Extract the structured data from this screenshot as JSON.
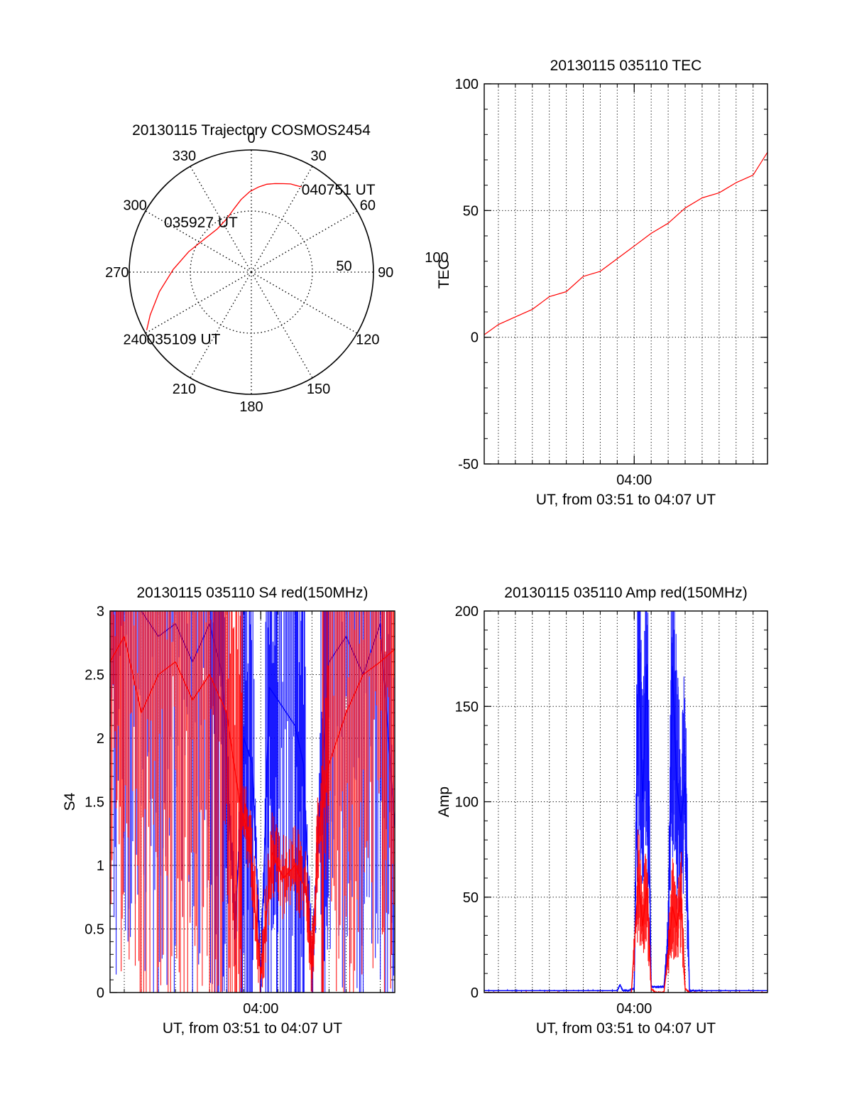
{
  "colors": {
    "red": "#ff0000",
    "blue": "#0000ff",
    "axis": "#000000",
    "grid": "#000000"
  },
  "chart_data": [
    {
      "id": "trajectory",
      "type": "polar",
      "title": "20130115 Trajectory COSMOS2454",
      "azimuth_labels": [
        "0",
        "30",
        "60",
        "90",
        "120",
        "150",
        "180",
        "210",
        "240",
        "270",
        "300",
        "330"
      ],
      "azimuth_values": [
        0,
        30,
        60,
        90,
        120,
        150,
        180,
        210,
        240,
        270,
        300,
        330
      ],
      "radial_labels": [
        "50",
        "100"
      ],
      "radial_values": [
        50,
        100
      ],
      "rlim": [
        0,
        100
      ],
      "track": {
        "color": "#ff0000",
        "points": [
          [
            241,
            98
          ],
          [
            247,
            90
          ],
          [
            258,
            77
          ],
          [
            272,
            64
          ],
          [
            288,
            54
          ],
          [
            305,
            47
          ],
          [
            322,
            45
          ],
          [
            335,
            48
          ],
          [
            345,
            54
          ],
          [
            352,
            60
          ],
          [
            359,
            66
          ],
          [
            5,
            70
          ],
          [
            10,
            73
          ],
          [
            15,
            75
          ],
          [
            20,
            77
          ],
          [
            24,
            79
          ],
          [
            28,
            80
          ],
          [
            30.5,
            81
          ]
        ]
      },
      "annotations": [
        {
          "text": "035109 UT",
          "az": 241,
          "r": 98
        },
        {
          "text": "035927 UT",
          "az": 308,
          "r": 48
        },
        {
          "text": "040751 UT",
          "az": 30.5,
          "r": 81
        }
      ]
    },
    {
      "id": "tec",
      "type": "line",
      "title": "20130115 035110 TEC",
      "ylabel": "TEC",
      "xlabel": "UT, from 03:51 to 04:07 UT",
      "xlim": [
        "03:51:10",
        "04:07:51"
      ],
      "ylim": [
        -50,
        100
      ],
      "yticks": [
        -50,
        0,
        50,
        100
      ],
      "ytick_labels": [
        "-50",
        "0",
        "50",
        "100"
      ],
      "xticks": [
        "04:00"
      ],
      "xtick_labels": [
        "04:00"
      ],
      "grid": true,
      "series": [
        {
          "color": "#ff0000",
          "x": [
            "03:51:10",
            "03:52:00",
            "03:53:00",
            "03:54:00",
            "03:55:00",
            "03:56:00",
            "03:57:00",
            "03:58:00",
            "03:59:00",
            "04:00:00",
            "04:01:00",
            "04:02:00",
            "04:03:00",
            "04:04:00",
            "04:05:00",
            "04:06:00",
            "04:07:00",
            "04:07:51"
          ],
          "y": [
            1,
            5,
            8,
            11,
            16,
            18,
            24,
            26,
            31,
            36,
            41,
            45,
            51,
            55,
            57,
            61,
            64,
            73
          ]
        }
      ]
    },
    {
      "id": "s4",
      "type": "line",
      "title": "20130115 035110 S4 red(150MHz)",
      "ylabel": "S4",
      "xlabel": "UT, from 03:51 to 04:07 UT",
      "xlim": [
        "03:51:10",
        "04:07:51"
      ],
      "ylim": [
        0,
        3
      ],
      "yticks": [
        0,
        0.5,
        1,
        1.5,
        2,
        2.5,
        3
      ],
      "ytick_labels": [
        "0",
        "0.5",
        "1",
        "1.5",
        "2",
        "2.5",
        "3"
      ],
      "xticks": [
        "04:00"
      ],
      "xtick_labels": [
        "04:00"
      ],
      "grid": true,
      "series": [
        {
          "color": "#0000ff",
          "x": [
            "03:51:10",
            "03:52:00",
            "03:53:00",
            "03:54:00",
            "03:55:00",
            "03:56:00",
            "03:57:00",
            "03:57:45",
            "03:58:30",
            "03:59:00",
            "03:59:30",
            "04:00:00",
            "04:00:30",
            "04:01:00",
            "04:02:00",
            "04:02:30",
            "04:03:00",
            "04:03:20",
            "04:04:00",
            "04:05:00",
            "04:06:00",
            "04:07:00",
            "04:07:51"
          ],
          "y": [
            3,
            3,
            3,
            2.8,
            2.9,
            2.6,
            2.9,
            2.5,
            0.5,
            2.0,
            1.8,
            0.12,
            2.4,
            2.3,
            2.1,
            1.8,
            0.12,
            1.2,
            2.6,
            2.8,
            2.5,
            2.9,
            1.3
          ]
        },
        {
          "color": "#ff0000",
          "x": [
            "03:51:10",
            "03:52:00",
            "03:53:00",
            "03:54:00",
            "03:55:00",
            "03:56:00",
            "03:57:00",
            "03:58:00",
            "03:58:45",
            "03:59:20",
            "04:00:00",
            "04:00:40",
            "04:01:20",
            "04:02:00",
            "04:02:40",
            "04:03:00",
            "04:03:20",
            "04:04:00",
            "04:05:00",
            "04:06:00",
            "04:07:00",
            "04:07:51"
          ],
          "y": [
            2.6,
            2.8,
            2.2,
            2.5,
            2.6,
            2.3,
            2.5,
            2.2,
            1.5,
            1.2,
            0.12,
            1.1,
            0.9,
            1.0,
            0.8,
            0.15,
            1.2,
            1.8,
            2.2,
            2.5,
            2.6,
            2.7
          ]
        }
      ]
    },
    {
      "id": "amp",
      "type": "line",
      "title": "20130115 035110 Amp red(150MHz)",
      "ylabel": "Amp",
      "xlabel": "UT, from 03:51 to 04:07 UT",
      "xlim": [
        "03:51:10",
        "04:07:51"
      ],
      "ylim": [
        0,
        200
      ],
      "yticks": [
        0,
        50,
        100,
        150,
        200
      ],
      "ytick_labels": [
        "0",
        "50",
        "100",
        "150",
        "200"
      ],
      "xticks": [
        "04:00"
      ],
      "xtick_labels": [
        "04:00"
      ],
      "grid": true,
      "series": [
        {
          "color": "#0000ff",
          "x": [
            "03:51:10",
            "03:55:00",
            "03:59:00",
            "03:59:10",
            "03:59:20",
            "03:59:40",
            "04:00:00",
            "04:00:15",
            "04:00:30",
            "04:00:45",
            "04:01:00",
            "04:01:15",
            "04:01:30",
            "04:01:45",
            "04:02:00",
            "04:02:15",
            "04:02:30",
            "04:02:45",
            "04:03:00",
            "04:03:15",
            "04:03:30",
            "04:04:00",
            "04:07:51"
          ],
          "y": [
            1,
            1,
            1,
            4,
            1,
            1,
            2,
            180,
            100,
            172,
            3,
            3,
            3,
            3,
            30,
            171,
            110,
            90,
            110,
            1,
            1,
            1,
            1
          ]
        },
        {
          "color": "#ff0000",
          "x": [
            "03:51:10",
            "03:59:50",
            "04:00:15",
            "04:00:30",
            "04:00:45",
            "04:01:00",
            "04:01:15",
            "04:01:45",
            "04:02:00",
            "04:02:15",
            "04:02:30",
            "04:02:45",
            "04:03:00",
            "04:03:15",
            "04:07:51"
          ],
          "y": [
            0,
            0,
            60,
            35,
            55,
            2,
            0,
            0,
            20,
            45,
            35,
            50,
            2,
            0,
            0
          ]
        }
      ]
    }
  ]
}
